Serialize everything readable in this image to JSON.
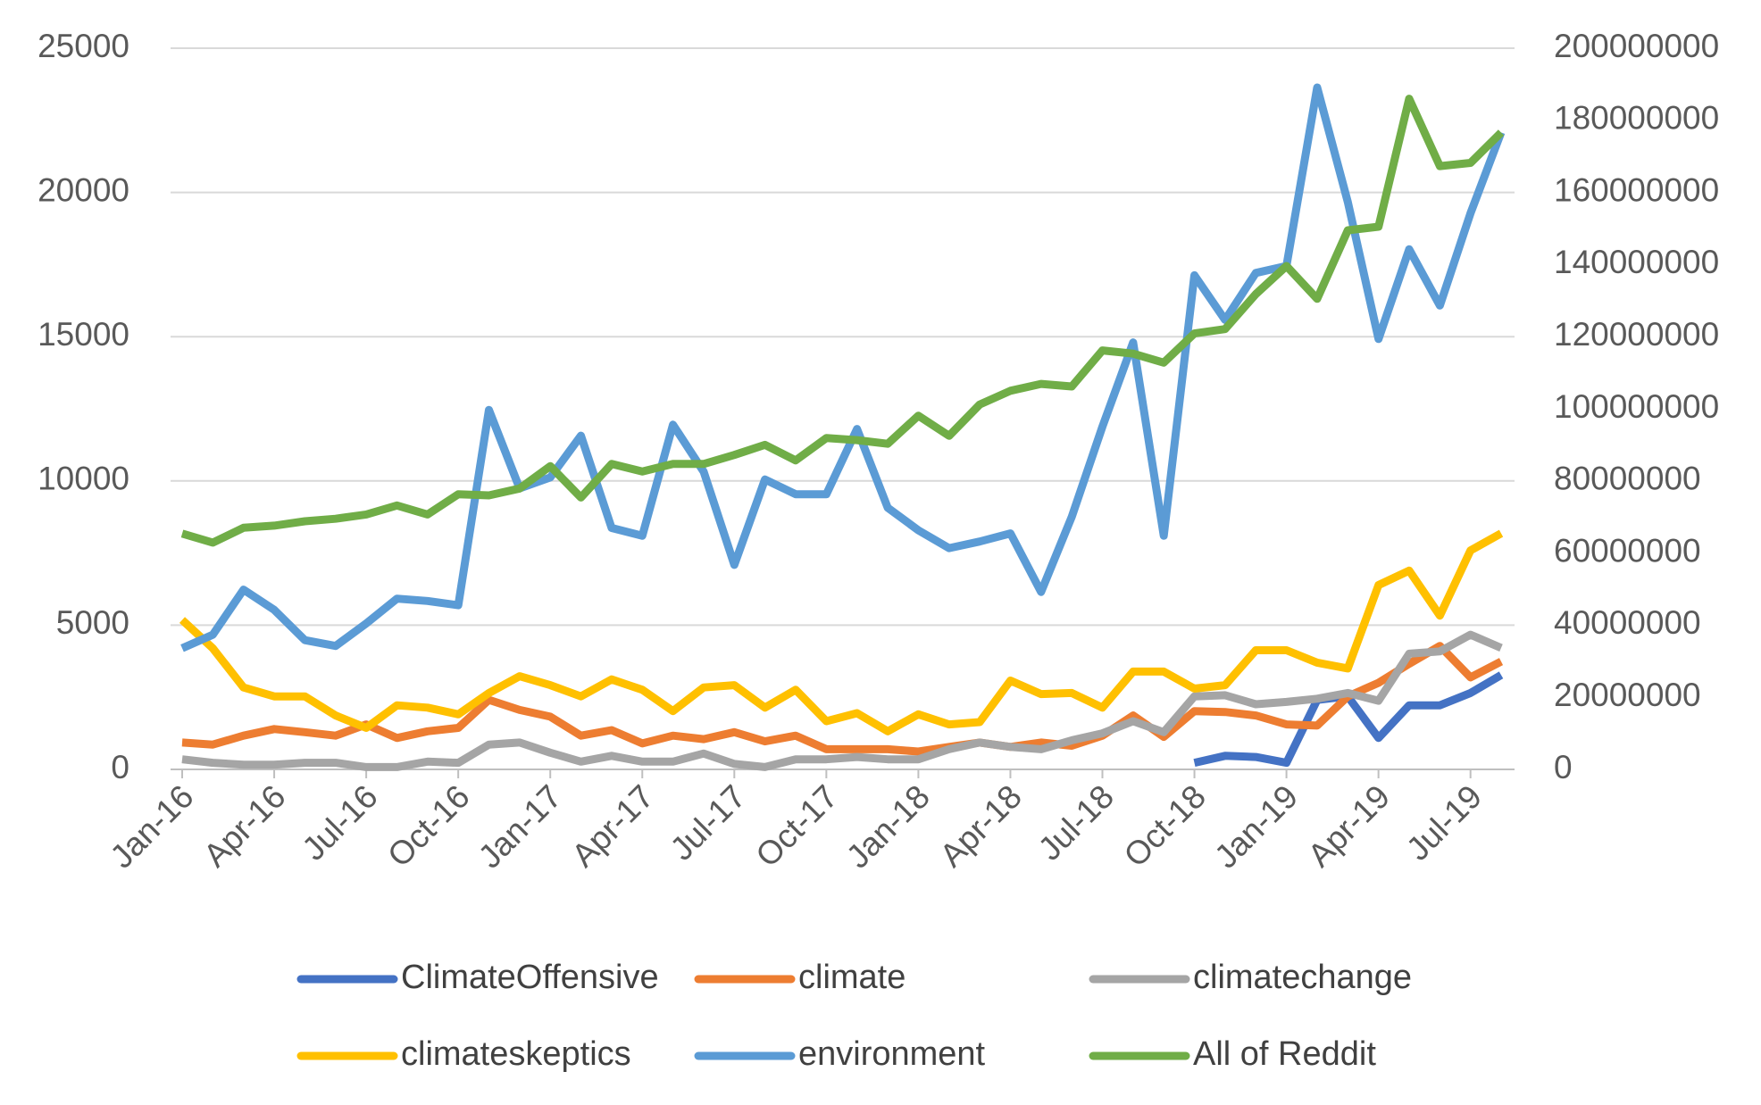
{
  "chart_data": {
    "type": "line",
    "categories": [
      "Jan-16",
      null,
      null,
      "Apr-16",
      null,
      null,
      "Jul-16",
      null,
      null,
      "Oct-16",
      null,
      null,
      "Jan-17",
      null,
      null,
      "Apr-17",
      null,
      null,
      "Jul-17",
      null,
      null,
      "Oct-17",
      null,
      null,
      "Jan-18",
      null,
      null,
      "Apr-18",
      null,
      null,
      "Jul-18",
      null,
      null,
      "Oct-18",
      null,
      null,
      "Jan-19",
      null,
      null,
      "Apr-19",
      null,
      null,
      "Jul-19",
      null
    ],
    "series": [
      {
        "name": "ClimateOffensive",
        "color": "#4472c4",
        "values": [
          null,
          null,
          null,
          null,
          null,
          null,
          null,
          null,
          null,
          null,
          null,
          null,
          null,
          null,
          null,
          null,
          null,
          null,
          null,
          null,
          null,
          null,
          null,
          null,
          null,
          null,
          null,
          null,
          null,
          null,
          null,
          null,
          null,
          230,
          470,
          430,
          230,
          2410,
          2530,
          1090,
          2220,
          2220,
          2650,
          3270
        ]
      },
      {
        "name": "climate",
        "color": "#ed7d31",
        "values": [
          930,
          860,
          1170,
          1400,
          1290,
          1170,
          1560,
          1090,
          1320,
          1440,
          2410,
          2060,
          1830,
          1170,
          1360,
          900,
          1170,
          1050,
          1290,
          970,
          1170,
          700,
          700,
          700,
          620,
          780,
          930,
          780,
          930,
          820,
          1170,
          1870,
          1130,
          2020,
          1990,
          1870,
          1560,
          1520,
          2530,
          3000,
          3660,
          4280,
          3190,
          3740
        ]
      },
      {
        "name": "climatechange",
        "color": "#a5a5a5",
        "values": [
          350,
          230,
          160,
          160,
          230,
          230,
          80,
          80,
          270,
          230,
          860,
          930,
          580,
          270,
          470,
          270,
          270,
          550,
          190,
          80,
          350,
          350,
          430,
          350,
          350,
          700,
          930,
          780,
          700,
          1010,
          1250,
          1670,
          1290,
          2530,
          2570,
          2260,
          2340,
          2450,
          2650,
          2380,
          4010,
          4090,
          4670,
          4210
        ]
      },
      {
        "name": "climateskeptics",
        "color": "#ffc000",
        "values": [
          5180,
          4200,
          2840,
          2530,
          2530,
          1870,
          1440,
          2220,
          2140,
          1910,
          2650,
          3230,
          2920,
          2530,
          3120,
          2760,
          2020,
          2840,
          2920,
          2140,
          2760,
          1670,
          1950,
          1320,
          1910,
          1560,
          1640,
          3080,
          2610,
          2650,
          2140,
          3390,
          3390,
          2800,
          2920,
          4130,
          4130,
          3700,
          3500,
          6390,
          6890,
          5330,
          7590,
          8180
        ]
      },
      {
        "name": "environment",
        "color": "#5b9bd5",
        "values": [
          4200,
          4670,
          6230,
          5530,
          4480,
          4280,
          5060,
          5920,
          5840,
          5690,
          12460,
          9740,
          10120,
          11570,
          8370,
          8100,
          11950,
          10320,
          7090,
          10050,
          9540,
          9540,
          11800,
          9070,
          8290,
          7670,
          7900,
          8180,
          6150,
          8760,
          11880,
          14800,
          8100,
          17130,
          15580,
          17210,
          17450,
          23640,
          19670,
          14920,
          18030,
          16080,
          19280,
          22080
        ]
      },
      {
        "name": "All of Reddit",
        "color": "#70ad47",
        "axis": "y2",
        "values": [
          65400000,
          62900000,
          67000000,
          67600000,
          68800000,
          69500000,
          70700000,
          73200000,
          70700000,
          76300000,
          76000000,
          77900000,
          84100000,
          75400000,
          84700000,
          82600000,
          84700000,
          84700000,
          87200000,
          90000000,
          85700000,
          91900000,
          91300000,
          90300000,
          98100000,
          92500000,
          101200000,
          105000000,
          106900000,
          106200000,
          116200000,
          115300000,
          112800000,
          120900000,
          122100000,
          131800000,
          139600000,
          130500000,
          149500000,
          150500000,
          186000000,
          167300000,
          168200000,
          176600000
        ]
      }
    ],
    "ylim": [
      0,
      25000
    ],
    "yticks": [
      0,
      5000,
      10000,
      15000,
      20000,
      25000
    ],
    "y2lim": [
      0,
      200000000
    ],
    "y2ticks": [
      0,
      20000000,
      40000000,
      60000000,
      80000000,
      100000000,
      120000000,
      140000000,
      160000000,
      180000000,
      200000000
    ],
    "grid": true,
    "legend": "bottom"
  }
}
